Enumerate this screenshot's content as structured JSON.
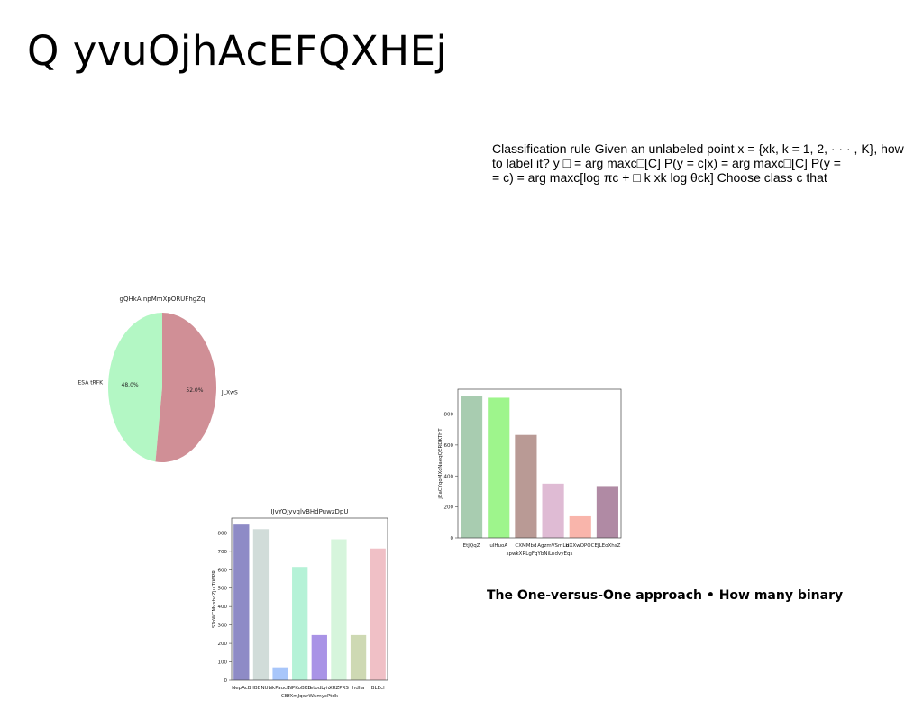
{
  "slide": {
    "title": "Q yvuOjhAcEFQXHEj",
    "body_lines": [
      "Classification rule Given an unlabeled point x = {xk, k = 1, 2, · · · , K}, how",
      "to label it? y □ = arg maxc□[C] P(y = c|x) = arg maxc□[C] P(y =",
      "= c) = arg maxc[log πc + □ k xk log θck] Choose class c that"
    ],
    "bold_text": "The One-versus-One approach • How many binary"
  },
  "chart_data": [
    {
      "type": "pie",
      "title": "gQHkA npMmXpORUFhgZq",
      "labels": [
        "ESA tRFK",
        "JLXwS"
      ],
      "values": [
        48.0,
        52.0
      ],
      "value_labels": [
        "48.0%",
        "52.0%"
      ],
      "colors": [
        "#b3f7c4",
        "#d08f96"
      ]
    },
    {
      "type": "bar",
      "title": "",
      "xlabel": "spwkXRLgFqYbNiLndvyEqs",
      "ylabel": "jEaCYqoMXcNaeqQERDKTHT",
      "categories": [
        "EtJQqZ",
        "uIHuoA",
        "CXMMbd",
        "AgzmVSmLb",
        "dXXwOPOC",
        "EJLEoXhsZ"
      ],
      "values": [
        915,
        905,
        665,
        350,
        140,
        335
      ],
      "colors": [
        "#a8ccb0",
        "#9ef58c",
        "#b99a95",
        "#dfbbd4",
        "#f9b5ab",
        "#b08aa4"
      ],
      "yticks": [
        0,
        200,
        400,
        600,
        800
      ],
      "ylim": [
        0,
        960
      ]
    },
    {
      "type": "bar",
      "title": "IJvYOJyvqlvBHdPuwzDpU",
      "xlabel": "CBfXmJqwrWAmycPtdk",
      "ylabel": "SToWCMvxhcZju TiWPR",
      "categories": [
        "NepAcB",
        "HBBNUb",
        "ikPaucE",
        "NPKoBKD",
        "tetodLyio",
        "XRZPRS",
        "hdlia",
        "BLEcl"
      ],
      "values": [
        845,
        820,
        70,
        615,
        245,
        765,
        245,
        715
      ],
      "colors": [
        "#8e8bc6",
        "#d1dcd9",
        "#a8c6fa",
        "#b5f2d7",
        "#a993e6",
        "#d6f5dc",
        "#ced9b3",
        "#f0c0c6"
      ],
      "yticks": [
        0,
        100,
        200,
        300,
        400,
        500,
        600,
        700,
        800
      ],
      "ylim": [
        0,
        880
      ]
    }
  ]
}
